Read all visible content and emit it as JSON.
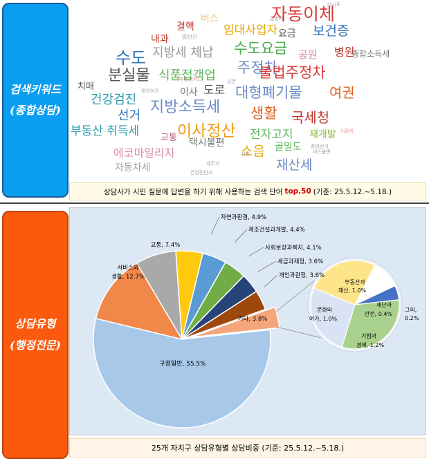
{
  "sidebar": {
    "keyword_title": "검색키워드",
    "keyword_sub": "(종합상담)",
    "type_title": "상담유형",
    "type_sub": "(행정전문)"
  },
  "word_cloud": {
    "caption": {
      "before": "상담사가 시민 질문에 답변을 하기 위해 사용하는 검색 단어",
      "highlight": "top.50",
      "after": "(기준: 25.5.12.~5.18.)"
    },
    "words": [
      {
        "text": "자동이체",
        "color": "#d93a3a"
      },
      {
        "text": "보건증",
        "color": "#2e74b5"
      },
      {
        "text": "수도요금",
        "color": "#4aa84a"
      },
      {
        "text": "임대사업자",
        "color": "#e8a800"
      },
      {
        "text": "주정차",
        "color": "#6b8bc4"
      },
      {
        "text": "불법주정차",
        "color": "#d93a3a"
      },
      {
        "text": "수도",
        "color": "#2e74b5"
      },
      {
        "text": "분실물",
        "color": "#555555"
      },
      {
        "text": "식품접객업",
        "color": "#5ab55a"
      },
      {
        "text": "지방세 체납",
        "color": "#9a9a9a"
      },
      {
        "text": "대형폐기물",
        "color": "#6b8bc4"
      },
      {
        "text": "여권",
        "color": "#e06020"
      },
      {
        "text": "건강검진",
        "color": "#2a9aa8"
      },
      {
        "text": "지방소득세",
        "color": "#6b8bc4"
      },
      {
        "text": "생활",
        "color": "#e06020"
      },
      {
        "text": "국세청",
        "color": "#c0392b"
      },
      {
        "text": "선거",
        "color": "#2e74b5"
      },
      {
        "text": "이사정산",
        "color": "#f39c12"
      },
      {
        "text": "부동산 취득세",
        "color": "#2a9aa8"
      },
      {
        "text": "전자고지",
        "color": "#5ab55a"
      },
      {
        "text": "재개발",
        "color": "#8cb83c"
      },
      {
        "text": "에코마일리지",
        "color": "#d98aa0"
      },
      {
        "text": "택시불편",
        "color": "#777777"
      },
      {
        "text": "소음",
        "color": "#e8a800"
      },
      {
        "text": "골밀도",
        "color": "#5ab55a"
      },
      {
        "text": "재산세",
        "color": "#6b8bc4"
      },
      {
        "text": "자동차세",
        "color": "#a0a0a0"
      },
      {
        "text": "공원",
        "color": "#d98aa0"
      },
      {
        "text": "병원",
        "color": "#c0392b"
      },
      {
        "text": "종합소득세",
        "color": "#7a7a7a"
      },
      {
        "text": "치매",
        "color": "#555555"
      },
      {
        "text": "이사",
        "color": "#777777"
      },
      {
        "text": "도로",
        "color": "#555555"
      },
      {
        "text": "교통",
        "color": "#c06080"
      },
      {
        "text": "결핵",
        "color": "#c0392b"
      },
      {
        "text": "내과",
        "color": "#c0392b"
      },
      {
        "text": "버스",
        "color": "#e8c870"
      },
      {
        "text": "요금",
        "color": "#555555"
      },
      {
        "text": "임신진",
        "color": "#9aa0a8"
      },
      {
        "text": "갑반여",
        "color": "#9aa0a8"
      },
      {
        "text": "타시도",
        "color": "#9aa0a8"
      },
      {
        "text": "기후동행카드",
        "color": "#e09090"
      },
      {
        "text": "금연",
        "color": "#9aa0a8"
      },
      {
        "text": "명의이전",
        "color": "#9aa0a8"
      },
      {
        "text": "성인",
        "color": "#9aa0a8"
      },
      {
        "text": "중앙선거",
        "color": "#9aa0a8"
      },
      {
        "text": "버스불편",
        "color": "#9aa0a8"
      },
      {
        "text": "이혼자",
        "color": "#e09090"
      },
      {
        "text": "세무서",
        "color": "#9aa0a8"
      },
      {
        "text": "건강진단서",
        "color": "#9aa0a8"
      }
    ]
  },
  "chart_data": [
    {
      "type": "pie",
      "title": "",
      "unit": "%",
      "slices": [
        {
          "label": "구정일반",
          "value": 55.5,
          "color": "#a8c8ea"
        },
        {
          "label": "서비스와 생활",
          "value": 12.7,
          "color": "#f0884a"
        },
        {
          "label": "교통",
          "value": 7.4,
          "color": "#a9a9a9"
        },
        {
          "label": "자연과환경",
          "value": 4.9,
          "color": "#ffc90e"
        },
        {
          "label": "제조건설과개발",
          "value": 4.4,
          "color": "#5b9bd5"
        },
        {
          "label": "사회보장과복지",
          "value": 4.1,
          "color": "#70ad47"
        },
        {
          "label": "세금과재정",
          "value": 3.6,
          "color": "#264478"
        },
        {
          "label": "개인과관정",
          "value": 3.6,
          "color": "#9e480e"
        },
        {
          "label": "기타",
          "value": 3.8,
          "color": "#f4a57a"
        }
      ],
      "labels": [
        {
          "text": "구정일반, 55.5%"
        },
        {
          "text": "서비스와"
        },
        {
          "text": "생활, 12.7%"
        },
        {
          "text": "교통, 7.4%"
        },
        {
          "text": "자연과환경, 4.9%"
        },
        {
          "text": "제조건설과개발, 4.4%"
        },
        {
          "text": "사회보장과복지, 4.1%"
        },
        {
          "text": "세금과재정, 3.6%"
        },
        {
          "text": "개인과관정, 3.6%"
        },
        {
          "text": "기타, 3.8%"
        }
      ]
    },
    {
      "type": "pie",
      "title": "",
      "unit": "%",
      "slices": [
        {
          "label": "부동산과 재산",
          "value": 1.0,
          "color": "#ffe58a"
        },
        {
          "label": "재난과 안전",
          "value": 0.4,
          "color": "#ffffff"
        },
        {
          "label": "그외",
          "value": 0.2,
          "color": "#4472c4"
        },
        {
          "label": "기업과 경제",
          "value": 1.2,
          "color": "#a9d18e"
        },
        {
          "label": "문화와 여가",
          "value": 1.0,
          "color": "#dae3f3"
        }
      ],
      "labels": [
        {
          "text": "부동산과"
        },
        {
          "text": "재산, 1.0%"
        },
        {
          "text": "재난과"
        },
        {
          "text": "안전, 0.4%"
        },
        {
          "text": "그외,"
        },
        {
          "text": "0.2%"
        },
        {
          "text": "기업과"
        },
        {
          "text": "경제, 1.2%"
        },
        {
          "text": "문화와"
        },
        {
          "text": "여가, 1.0%"
        }
      ]
    }
  ],
  "chart_caption": "25개 자치구 상담유형별 상담비중 (기준: 25.5.12.~5.18.)"
}
